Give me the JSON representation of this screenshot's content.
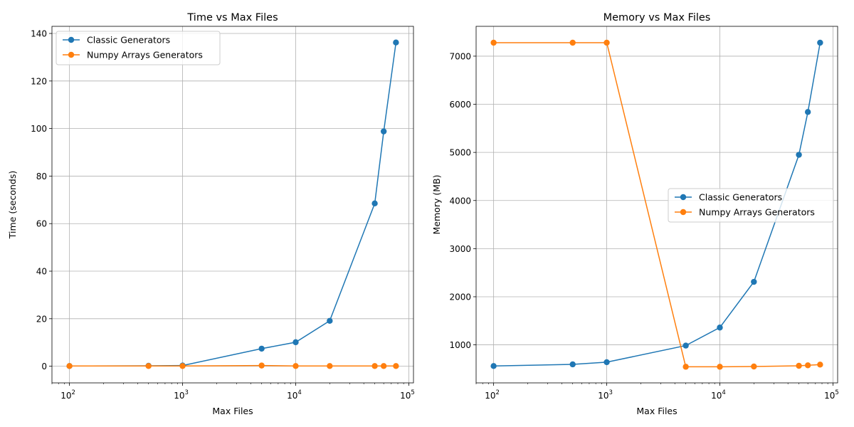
{
  "chart_data": [
    {
      "type": "line",
      "title": "Time vs Max Files",
      "xlabel": "Max Files",
      "ylabel": "Time (seconds)",
      "xscale": "log",
      "xlim": [
        70,
        110000
      ],
      "ylim": [
        -7,
        143
      ],
      "xticks": [
        {
          "value": 100,
          "base": "10",
          "exp": "2"
        },
        {
          "value": 1000,
          "base": "10",
          "exp": "3"
        },
        {
          "value": 10000,
          "base": "10",
          "exp": "4"
        },
        {
          "value": 100000,
          "base": "10",
          "exp": "5"
        }
      ],
      "yticks": [
        {
          "value": 0,
          "label": "0"
        },
        {
          "value": 20,
          "label": "20"
        },
        {
          "value": 40,
          "label": "40"
        },
        {
          "value": 60,
          "label": "60"
        },
        {
          "value": 80,
          "label": "80"
        },
        {
          "value": 100,
          "label": "100"
        },
        {
          "value": 120,
          "label": "120"
        },
        {
          "value": 140,
          "label": "140"
        }
      ],
      "grid": true,
      "legend_position": "upper-left",
      "x": [
        100,
        500,
        1000,
        5000,
        10000,
        20000,
        50000,
        60000,
        77000
      ],
      "series": [
        {
          "name": "Classic Generators",
          "color": "#1f77b4",
          "values": [
            0.1,
            0.2,
            0.3,
            7.4,
            10.1,
            19.1,
            68.5,
            98.8,
            136.2
          ]
        },
        {
          "name": "Numpy Arrays Generators",
          "color": "#ff7f0e",
          "values": [
            0.1,
            0.1,
            0.1,
            0.3,
            0.1,
            0.1,
            0.1,
            0.1,
            0.1
          ]
        }
      ]
    },
    {
      "type": "line",
      "title": "Memory vs Max Files",
      "xlabel": "Max Files",
      "ylabel": "Memory (MB)",
      "xscale": "log",
      "xlim": [
        70,
        110000
      ],
      "ylim": [
        210,
        7620
      ],
      "xticks": [
        {
          "value": 100,
          "base": "10",
          "exp": "2"
        },
        {
          "value": 1000,
          "base": "10",
          "exp": "3"
        },
        {
          "value": 10000,
          "base": "10",
          "exp": "4"
        },
        {
          "value": 100000,
          "base": "10",
          "exp": "5"
        }
      ],
      "yticks": [
        {
          "value": 1000,
          "label": "1000"
        },
        {
          "value": 2000,
          "label": "2000"
        },
        {
          "value": 3000,
          "label": "3000"
        },
        {
          "value": 4000,
          "label": "4000"
        },
        {
          "value": 5000,
          "label": "5000"
        },
        {
          "value": 6000,
          "label": "6000"
        },
        {
          "value": 7000,
          "label": "7000"
        }
      ],
      "grid": true,
      "legend_position": "center-right",
      "x": [
        100,
        500,
        1000,
        5000,
        10000,
        20000,
        50000,
        60000,
        77000
      ],
      "series": [
        {
          "name": "Classic Generators",
          "color": "#1f77b4",
          "values": [
            560,
            595,
            640,
            985,
            1360,
            2310,
            4950,
            5840,
            7280
          ]
        },
        {
          "name": "Numpy Arrays Generators",
          "color": "#ff7f0e",
          "values": [
            7280,
            7280,
            7280,
            545,
            545,
            550,
            565,
            575,
            590
          ]
        }
      ]
    }
  ]
}
